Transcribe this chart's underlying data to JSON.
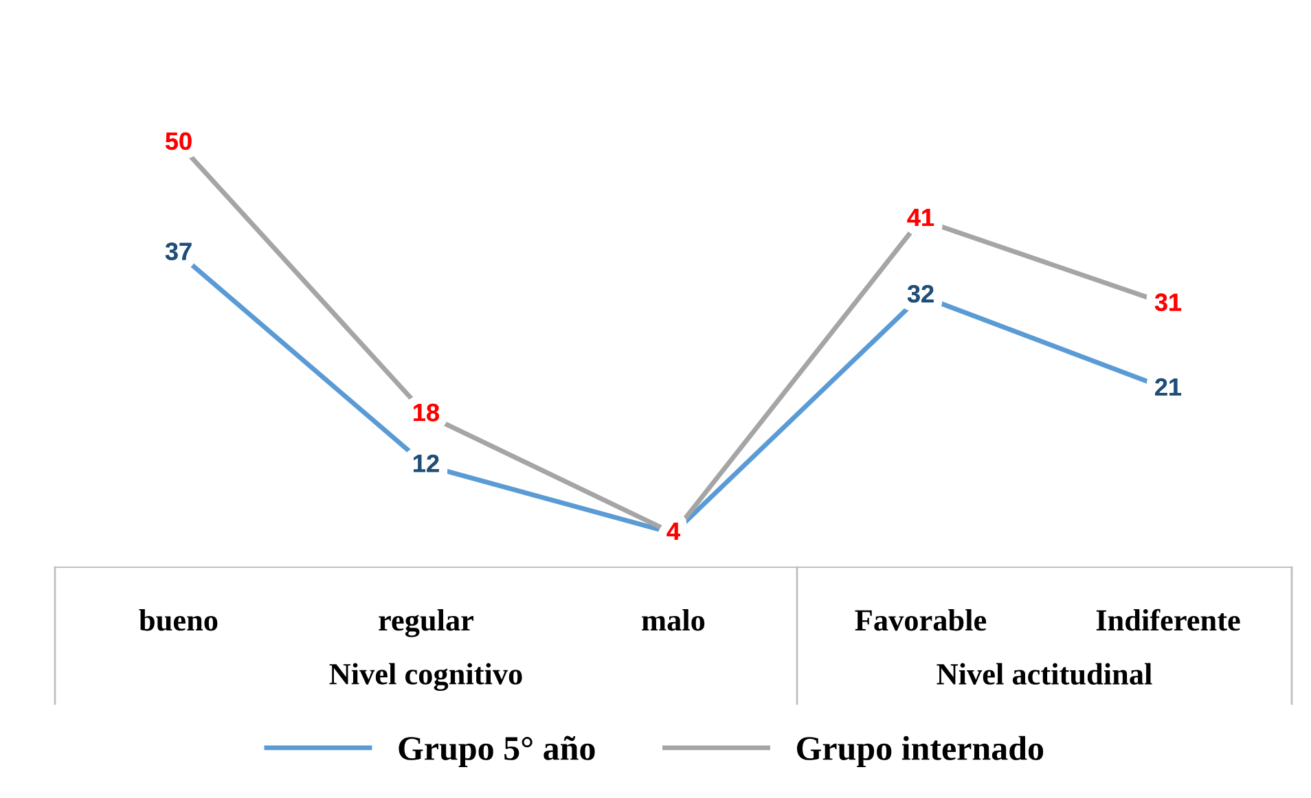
{
  "chart_data": {
    "type": "line",
    "categories": [
      "bueno",
      "regular",
      "malo",
      "Favorable",
      "Indiferente"
    ],
    "series": [
      {
        "name": "Grupo 5° año",
        "color": "#5b9bd5",
        "values": [
          37,
          12,
          4,
          32,
          21
        ],
        "value_labels": [
          "37",
          "12",
          null,
          "32",
          "21"
        ]
      },
      {
        "name": "Grupo internado",
        "color": "#a5a5a5",
        "values": [
          50,
          18,
          4,
          41,
          31
        ],
        "value_labels": [
          "50",
          "18",
          "4",
          "41",
          "31"
        ]
      }
    ],
    "annotations": [
      "Nivel cognitivo",
      "Nivel actitudinal"
    ],
    "line_style": "solid",
    "grid": false,
    "legend": "bottom"
  }
}
